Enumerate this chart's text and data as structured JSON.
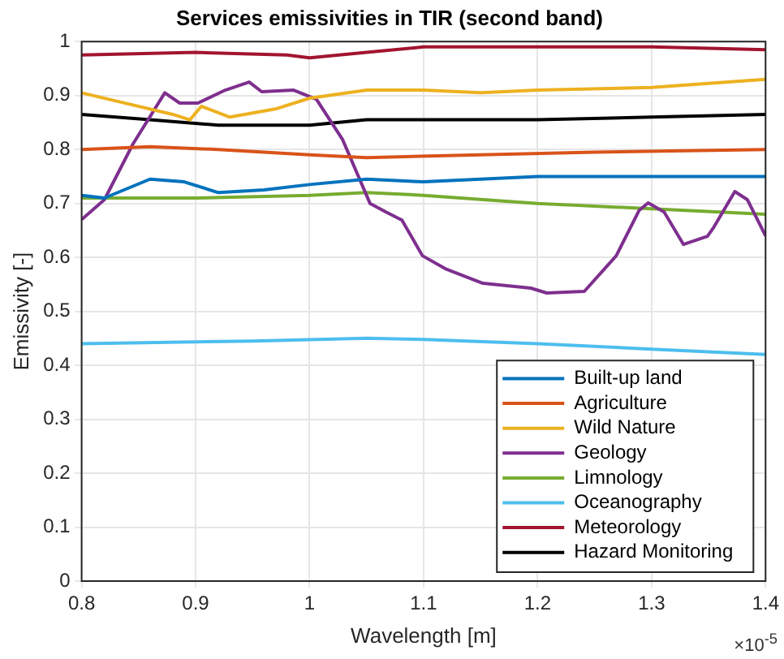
{
  "chart_data": {
    "type": "line",
    "title": "Services emissivities in TIR (second band)",
    "xlabel": "Wavelength [m]",
    "ylabel": "Emissivity [-]",
    "annotations": [
      "×10$^{-5}$"
    ],
    "xlim": [
      0.8,
      1.4
    ],
    "xticks": [
      0.8,
      0.9,
      1,
      1.1,
      1.2,
      1.3,
      1.4
    ],
    "ylim": [
      0,
      1
    ],
    "yticks": [
      0,
      0.1,
      0.2,
      0.3,
      0.4,
      0.5,
      0.6,
      0.7,
      0.8,
      0.9,
      1
    ],
    "grid": true,
    "legend": "bottom right",
    "marker": "none",
    "line_style": "solid",
    "series": [
      {
        "name": "Built-up land",
        "color": "#0072bd",
        "x": [
          0.8,
          0.82,
          0.86,
          0.89,
          0.92,
          0.96,
          1.0,
          1.05,
          1.1,
          1.2,
          1.3,
          1.4
        ],
        "values": [
          0.715,
          0.71,
          0.745,
          0.74,
          0.72,
          0.725,
          0.735,
          0.745,
          0.74,
          0.75,
          0.75,
          0.75
        ]
      },
      {
        "name": "Agriculture",
        "color": "#d95319",
        "x": [
          0.8,
          0.86,
          0.92,
          1.0,
          1.05,
          1.15,
          1.25,
          1.4
        ],
        "values": [
          0.8,
          0.805,
          0.8,
          0.79,
          0.785,
          0.79,
          0.795,
          0.8
        ]
      },
      {
        "name": "Wild Nature",
        "color": "#edb120",
        "x": [
          0.8,
          0.83,
          0.88,
          0.895,
          0.905,
          0.93,
          0.97,
          1.0,
          1.05,
          1.1,
          1.15,
          1.2,
          1.3,
          1.4
        ],
        "values": [
          0.905,
          0.89,
          0.865,
          0.855,
          0.88,
          0.86,
          0.875,
          0.895,
          0.91,
          0.91,
          0.905,
          0.91,
          0.915,
          0.93
        ]
      },
      {
        "name": "Geology",
        "color": "#7e2f8e",
        "x": [
          0.8,
          0.82,
          0.845,
          0.873,
          0.886,
          0.902,
          0.926,
          0.947,
          0.958,
          0.986,
          1.006,
          1.029,
          1.053,
          1.067,
          1.081,
          1.099,
          1.119,
          1.152,
          1.194,
          1.208,
          1.241,
          1.269,
          1.289,
          1.297,
          1.311,
          1.328,
          1.349,
          1.354,
          1.373,
          1.384,
          1.4
        ],
        "values": [
          0.67,
          0.707,
          0.81,
          0.905,
          0.886,
          0.886,
          0.91,
          0.925,
          0.907,
          0.91,
          0.893,
          0.818,
          0.7,
          0.684,
          0.669,
          0.603,
          0.579,
          0.552,
          0.543,
          0.534,
          0.537,
          0.603,
          0.687,
          0.701,
          0.684,
          0.624,
          0.639,
          0.654,
          0.722,
          0.707,
          0.64
        ]
      },
      {
        "name": "Limnology",
        "color": "#77ac30",
        "x": [
          0.8,
          0.9,
          1.0,
          1.05,
          1.1,
          1.2,
          1.3,
          1.4
        ],
        "values": [
          0.71,
          0.71,
          0.715,
          0.72,
          0.715,
          0.7,
          0.69,
          0.68
        ]
      },
      {
        "name": "Oceanography",
        "color": "#4dbeee",
        "x": [
          0.8,
          0.95,
          1.05,
          1.1,
          1.2,
          1.3,
          1.4
        ],
        "values": [
          0.44,
          0.445,
          0.45,
          0.448,
          0.44,
          0.43,
          0.42
        ]
      },
      {
        "name": "Meteorology",
        "color": "#a2142f",
        "x": [
          0.8,
          0.9,
          0.98,
          1.0,
          1.05,
          1.1,
          1.2,
          1.3,
          1.4
        ],
        "values": [
          0.975,
          0.98,
          0.975,
          0.97,
          0.98,
          0.99,
          0.99,
          0.99,
          0.985
        ]
      },
      {
        "name": "Hazard Monitoring",
        "color": "#000000",
        "x": [
          0.8,
          0.86,
          0.92,
          1.0,
          1.05,
          1.2,
          1.3,
          1.4
        ],
        "values": [
          0.865,
          0.855,
          0.845,
          0.845,
          0.855,
          0.855,
          0.86,
          0.865
        ]
      }
    ]
  }
}
